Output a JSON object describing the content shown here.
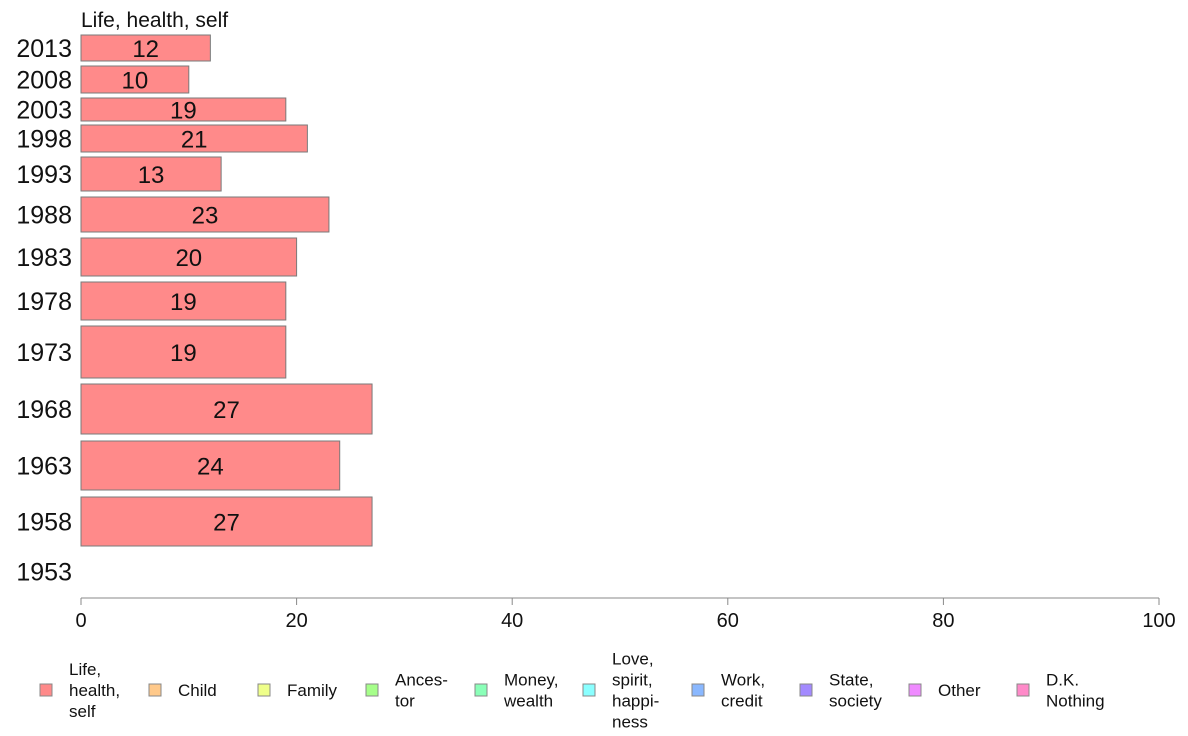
{
  "chart_data": {
    "type": "bar",
    "orientation": "horizontal",
    "title": "Life, health, self",
    "xlim": [
      0,
      100
    ],
    "x_ticks": [
      0,
      20,
      40,
      60,
      80,
      100
    ],
    "categories": [
      "2013",
      "2008",
      "2003",
      "1998",
      "1993",
      "1988",
      "1983",
      "1978",
      "1973",
      "1968",
      "1963",
      "1958",
      "1953"
    ],
    "series": [
      {
        "name": "Life, health, self",
        "color": "#ff8a8a",
        "values": [
          12,
          10,
          19,
          21,
          13,
          23,
          20,
          19,
          19,
          27,
          24,
          27,
          null
        ]
      }
    ],
    "legend": {
      "position": "bottom",
      "items": [
        {
          "lines": [
            "Life,",
            "health,",
            "self"
          ],
          "color": "#ff8a8a"
        },
        {
          "lines": [
            "Child"
          ],
          "color": "#ffc98a"
        },
        {
          "lines": [
            "Family"
          ],
          "color": "#efff8a"
        },
        {
          "lines": [
            "Ances-",
            "tor"
          ],
          "color": "#a6ff8a"
        },
        {
          "lines": [
            "Money,",
            "wealth"
          ],
          "color": "#8affb8"
        },
        {
          "lines": [
            "Love,",
            "spirit,",
            "happi-",
            "ness"
          ],
          "color": "#8affff"
        },
        {
          "lines": [
            "Work,",
            "credit"
          ],
          "color": "#8ab8ff"
        },
        {
          "lines": [
            "State,",
            "society"
          ],
          "color": "#a38aff"
        },
        {
          "lines": [
            "Other"
          ],
          "color": "#ef8aff"
        },
        {
          "lines": [
            "D.K.",
            "Nothing"
          ],
          "color": "#ff8ac9"
        }
      ]
    }
  }
}
